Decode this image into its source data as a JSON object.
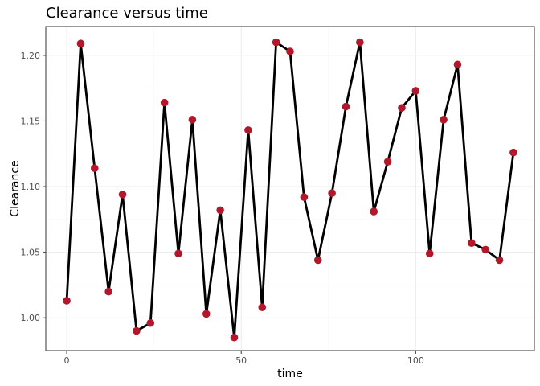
{
  "chart_data": {
    "type": "line",
    "title": "Clearance versus time",
    "xlabel": "time",
    "ylabel": "Clearance",
    "xlim": [
      -6,
      134
    ],
    "ylim": [
      0.975,
      1.222
    ],
    "x_ticks": [
      0,
      50,
      100
    ],
    "y_ticks": [
      1.0,
      1.05,
      1.1,
      1.15,
      1.2
    ],
    "x_tick_labels": [
      "0",
      "50",
      "100"
    ],
    "y_tick_labels": [
      "1.00",
      "1.05",
      "1.10",
      "1.15",
      "1.20"
    ],
    "grid": true,
    "line_color": "#000000",
    "point_color": "#B2182B",
    "x": [
      0,
      4,
      8,
      12,
      16,
      20,
      24,
      28,
      32,
      36,
      40,
      44,
      48,
      52,
      56,
      60,
      64,
      68,
      72,
      76,
      80,
      84,
      88,
      92,
      96,
      100,
      104,
      108,
      112,
      116,
      120,
      124,
      128
    ],
    "y": [
      1.013,
      1.209,
      1.114,
      1.02,
      1.094,
      0.99,
      0.996,
      1.164,
      1.049,
      1.151,
      1.003,
      1.082,
      0.985,
      1.143,
      1.008,
      1.21,
      1.203,
      1.092,
      1.044,
      1.095,
      1.161,
      1.21,
      1.081,
      1.119,
      1.16,
      1.173,
      1.049,
      1.151,
      1.193,
      1.057,
      1.052,
      1.044,
      1.126
    ]
  }
}
